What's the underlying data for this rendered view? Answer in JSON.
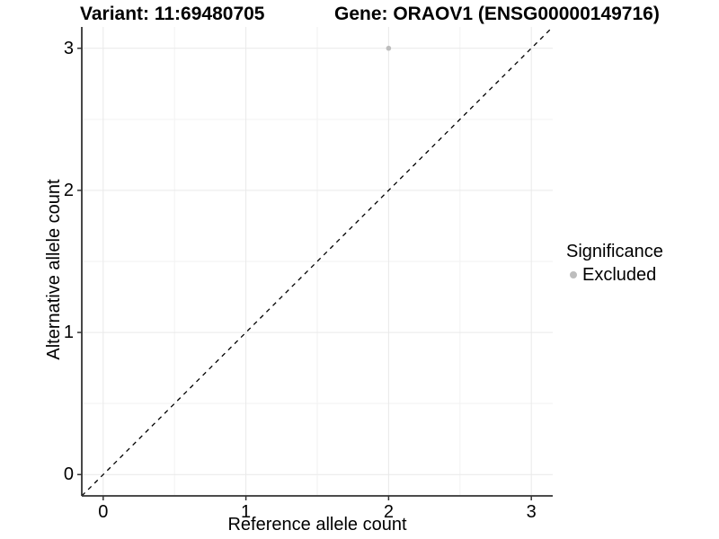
{
  "titles": {
    "variant": "Variant: 11:69480705",
    "gene": "Gene: ORAOV1 (ENSG00000149716)"
  },
  "axes": {
    "x": {
      "label": "Reference allele count"
    },
    "y": {
      "label": "Alternative allele count"
    }
  },
  "legend": {
    "title": "Significance",
    "items": [
      {
        "label": "Excluded",
        "color": "#bdbdbd"
      }
    ]
  },
  "chart_data": {
    "type": "scatter",
    "xlabel": "Reference allele count",
    "ylabel": "Alternative allele count",
    "xlim": [
      -0.15,
      3.15
    ],
    "ylim": [
      -0.15,
      3.15
    ],
    "major_ticks": [
      0,
      1,
      2,
      3
    ],
    "minor_ticks": [
      0.5,
      1.5,
      2.5
    ],
    "grid": "major+minor",
    "legend_position": "right",
    "series": [
      {
        "name": "Excluded",
        "color": "#bdbdbd",
        "points": [
          {
            "x": 2,
            "y": 3
          }
        ]
      }
    ],
    "reference_line": {
      "kind": "identity y=x",
      "style": "dashed",
      "color": "#000000"
    }
  },
  "colors": {
    "background": "#ffffff",
    "grid_major": "#e9e9e9",
    "grid_minor": "#f2f2f2",
    "axis": "#333333",
    "text": "#000000",
    "point": "#bdbdbd",
    "dashed_line": "#000000"
  }
}
